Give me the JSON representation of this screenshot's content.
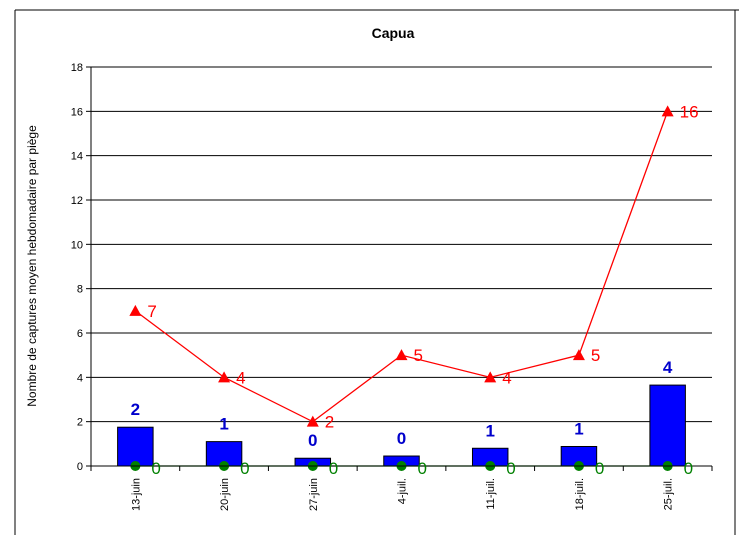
{
  "chart_data": {
    "type": "bar",
    "title": "Capua",
    "ylabel": "Nombre de captures moyen hebdomadaire  par piège",
    "xlabel": "",
    "ylim": [
      0,
      18
    ],
    "yticks": [
      0,
      2,
      4,
      6,
      8,
      10,
      12,
      14,
      16,
      18
    ],
    "grid": true,
    "categories": [
      "13-juin",
      "20-juin",
      "27-juin",
      "4-juil.",
      "11-juil.",
      "18-juil.",
      "25-juil."
    ],
    "series": [
      {
        "kind": "bar",
        "color": "#0000ff",
        "values": [
          1.75,
          1.1,
          0.35,
          0.45,
          0.8,
          0.88,
          3.65
        ],
        "labels": [
          "2",
          "1",
          "0",
          "0",
          "1",
          "1",
          "4"
        ],
        "label_color": "#0000cc"
      },
      {
        "kind": "line",
        "marker": "triangle",
        "color": "#ff0000",
        "values": [
          7,
          4,
          2,
          5,
          4,
          5,
          16
        ],
        "labels": [
          "7",
          "4",
          "2",
          "5",
          "4",
          "5",
          "16"
        ]
      },
      {
        "kind": "line",
        "marker": "circle",
        "color": "#008000",
        "values": [
          0,
          0,
          0,
          0,
          0,
          0,
          0
        ],
        "labels": [
          "0",
          "0",
          "0",
          "0",
          "0",
          "0",
          "0"
        ]
      }
    ]
  }
}
